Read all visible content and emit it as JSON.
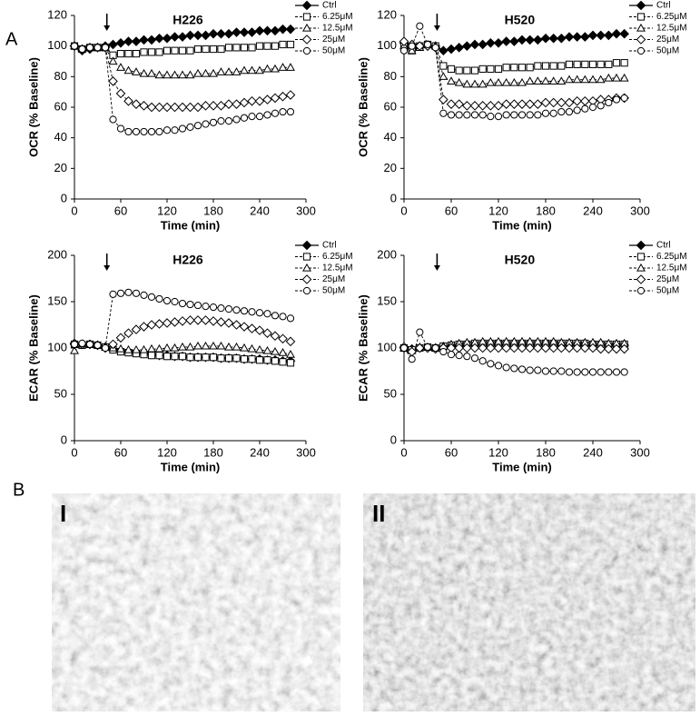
{
  "panel_labels": [
    "A",
    "B"
  ],
  "images": [
    {
      "label": "I"
    },
    {
      "label": "II"
    }
  ],
  "chart_data": [
    {
      "type": "line",
      "title": "H226",
      "x_label": "Time (min)",
      "y_label": "OCR (% Baseline)",
      "legend": "upper right",
      "xlim": [
        0,
        300
      ],
      "xticks": [
        0,
        60,
        120,
        180,
        240,
        300
      ],
      "ylim": [
        0,
        120
      ],
      "yticks": [
        0,
        20,
        40,
        60,
        80,
        100,
        120
      ],
      "x": [
        0,
        10,
        20,
        30,
        40,
        50,
        60,
        70,
        80,
        90,
        100,
        110,
        120,
        130,
        140,
        150,
        160,
        170,
        180,
        190,
        200,
        210,
        220,
        230,
        240,
        250,
        260,
        270,
        280
      ],
      "series": [
        {
          "name": "Ctrl",
          "color": "#000000",
          "marker": "diamond",
          "filled": true,
          "dashed": false,
          "values": [
            100,
            97,
            98,
            99,
            100,
            101,
            102,
            103,
            103,
            104,
            104,
            105,
            105,
            106,
            106,
            107,
            107,
            107,
            108,
            108,
            108,
            109,
            109,
            109,
            110,
            110,
            110,
            111,
            111
          ]
        },
        {
          "name": "6.25μM",
          "color": "#000000",
          "marker": "square",
          "filled": false,
          "dashed": true,
          "values": [
            100,
            98,
            99,
            99,
            99,
            94,
            95,
            95,
            95,
            96,
            96,
            96,
            97,
            97,
            97,
            97,
            98,
            98,
            98,
            98,
            99,
            99,
            99,
            99,
            100,
            100,
            100,
            101,
            101
          ]
        },
        {
          "name": "12.5μM",
          "color": "#000000",
          "marker": "triangle",
          "filled": false,
          "dashed": true,
          "values": [
            100,
            98,
            99,
            99,
            99,
            90,
            86,
            84,
            83,
            82,
            82,
            81,
            81,
            81,
            81,
            81,
            82,
            82,
            82,
            83,
            83,
            83,
            84,
            84,
            84,
            85,
            85,
            86,
            86
          ]
        },
        {
          "name": "25μM",
          "color": "#000000",
          "marker": "diamond",
          "filled": false,
          "dashed": true,
          "values": [
            100,
            98,
            99,
            99,
            99,
            77,
            69,
            64,
            62,
            61,
            60,
            60,
            60,
            60,
            60,
            60,
            60,
            61,
            61,
            61,
            62,
            62,
            63,
            64,
            64,
            65,
            66,
            67,
            68
          ]
        },
        {
          "name": "50μM",
          "color": "#000000",
          "marker": "circle",
          "filled": false,
          "dashed": true,
          "values": [
            100,
            98,
            99,
            99,
            99,
            52,
            46,
            44,
            44,
            44,
            44,
            44,
            45,
            45,
            46,
            47,
            48,
            49,
            50,
            51,
            51,
            52,
            53,
            54,
            54,
            55,
            56,
            57,
            57
          ]
        }
      ]
    },
    {
      "type": "line",
      "title": "H520",
      "x_label": "Time (min)",
      "y_label": "OCR (% Baseline)",
      "legend": "upper right",
      "xlim": [
        0,
        300
      ],
      "xticks": [
        0,
        60,
        120,
        180,
        240,
        300
      ],
      "ylim": [
        0,
        120
      ],
      "yticks": [
        0,
        20,
        40,
        60,
        80,
        100,
        120
      ],
      "x": [
        0,
        10,
        20,
        30,
        40,
        50,
        60,
        70,
        80,
        90,
        100,
        110,
        120,
        130,
        140,
        150,
        160,
        170,
        180,
        190,
        200,
        210,
        220,
        230,
        240,
        250,
        260,
        270,
        280
      ],
      "series": [
        {
          "name": "Ctrl",
          "color": "#000000",
          "marker": "diamond",
          "filled": true,
          "dashed": false,
          "values": [
            102,
            98,
            100,
            100,
            100,
            97,
            98,
            99,
            100,
            101,
            101,
            102,
            102,
            103,
            103,
            104,
            104,
            104,
            105,
            105,
            105,
            106,
            106,
            106,
            107,
            107,
            107,
            108,
            108
          ]
        },
        {
          "name": "6.25μM",
          "color": "#000000",
          "marker": "square",
          "filled": false,
          "dashed": true,
          "values": [
            101,
            97,
            100,
            101,
            100,
            87,
            85,
            84,
            84,
            84,
            85,
            85,
            85,
            86,
            86,
            86,
            86,
            87,
            87,
            87,
            87,
            88,
            88,
            88,
            88,
            88,
            88,
            89,
            89
          ]
        },
        {
          "name": "12.5μM",
          "color": "#000000",
          "marker": "triangle",
          "filled": false,
          "dashed": true,
          "values": [
            100,
            97,
            99,
            101,
            100,
            80,
            77,
            76,
            75,
            75,
            75,
            76,
            76,
            76,
            76,
            76,
            77,
            77,
            77,
            77,
            77,
            78,
            78,
            78,
            78,
            78,
            79,
            79,
            79
          ]
        },
        {
          "name": "25μM",
          "color": "#000000",
          "marker": "diamond",
          "filled": false,
          "dashed": true,
          "values": [
            103,
            101,
            100,
            100,
            99,
            65,
            62,
            62,
            61,
            61,
            61,
            61,
            61,
            62,
            62,
            62,
            62,
            62,
            63,
            63,
            63,
            63,
            64,
            64,
            64,
            65,
            65,
            66,
            66
          ]
        },
        {
          "name": "50μM",
          "color": "#000000",
          "marker": "circle",
          "filled": false,
          "dashed": true,
          "values": [
            97,
            100,
            113,
            101,
            99,
            56,
            55,
            55,
            55,
            55,
            55,
            54,
            54,
            55,
            55,
            55,
            55,
            55,
            56,
            56,
            57,
            57,
            58,
            59,
            60,
            61,
            63,
            65,
            66
          ]
        }
      ]
    },
    {
      "type": "line",
      "title": "H226",
      "x_label": "Time (min)",
      "y_label": "ECAR (% Baseline)",
      "legend": "upper right",
      "xlim": [
        0,
        300
      ],
      "xticks": [
        0,
        60,
        120,
        180,
        240,
        300
      ],
      "ylim": [
        0,
        200
      ],
      "yticks": [
        0,
        50,
        100,
        150,
        200
      ],
      "x": [
        0,
        10,
        20,
        30,
        40,
        50,
        60,
        70,
        80,
        90,
        100,
        110,
        120,
        130,
        140,
        150,
        160,
        170,
        180,
        190,
        200,
        210,
        220,
        230,
        240,
        250,
        260,
        270,
        280
      ],
      "series": [
        {
          "name": "Ctrl",
          "color": "#000000",
          "marker": "diamond",
          "filled": true,
          "dashed": false,
          "values": [
            105,
            104,
            104,
            103,
            101,
            99,
            97,
            96,
            95,
            94,
            93,
            92,
            92,
            91,
            91,
            90,
            90,
            90,
            90,
            89,
            89,
            89,
            88,
            88,
            88,
            87,
            87,
            86,
            86
          ]
        },
        {
          "name": "6.25μM",
          "color": "#000000",
          "marker": "square",
          "filled": false,
          "dashed": true,
          "values": [
            104,
            103,
            104,
            103,
            101,
            98,
            96,
            95,
            94,
            93,
            92,
            92,
            91,
            91,
            91,
            90,
            90,
            90,
            90,
            89,
            89,
            89,
            88,
            88,
            87,
            87,
            86,
            85,
            84
          ]
        },
        {
          "name": "12.5μM",
          "color": "#000000",
          "marker": "triangle",
          "filled": false,
          "dashed": true,
          "values": [
            97,
            104,
            104,
            103,
            101,
            100,
            99,
            98,
            98,
            98,
            99,
            99,
            100,
            100,
            101,
            101,
            102,
            102,
            102,
            102,
            101,
            101,
            100,
            99,
            98,
            97,
            96,
            95,
            93
          ]
        },
        {
          "name": "25μM",
          "color": "#000000",
          "marker": "diamond",
          "filled": false,
          "dashed": true,
          "values": [
            104,
            104,
            104,
            103,
            100,
            104,
            111,
            116,
            120,
            123,
            125,
            126,
            127,
            128,
            129,
            130,
            130,
            130,
            129,
            128,
            127,
            125,
            123,
            121,
            119,
            116,
            113,
            110,
            107
          ]
        },
        {
          "name": "50μM",
          "color": "#000000",
          "marker": "circle",
          "filled": false,
          "dashed": true,
          "values": [
            104,
            105,
            104,
            103,
            100,
            158,
            159,
            160,
            159,
            157,
            155,
            153,
            151,
            150,
            148,
            147,
            146,
            145,
            144,
            143,
            142,
            141,
            140,
            139,
            138,
            137,
            135,
            134,
            132
          ]
        }
      ]
    },
    {
      "type": "line",
      "title": "H520",
      "x_label": "Time (min)",
      "y_label": "ECAR (% Baseline)",
      "legend": "upper right",
      "xlim": [
        0,
        300
      ],
      "xticks": [
        0,
        60,
        120,
        180,
        240,
        300
      ],
      "ylim": [
        0,
        200
      ],
      "yticks": [
        0,
        50,
        100,
        150,
        200
      ],
      "x": [
        0,
        10,
        20,
        30,
        40,
        50,
        60,
        70,
        80,
        90,
        100,
        110,
        120,
        130,
        140,
        150,
        160,
        170,
        180,
        190,
        200,
        210,
        220,
        230,
        240,
        250,
        260,
        270,
        280
      ],
      "series": [
        {
          "name": "Ctrl",
          "color": "#000000",
          "marker": "diamond",
          "filled": true,
          "dashed": false,
          "values": [
            100,
            99,
            100,
            100,
            100,
            101,
            102,
            102,
            103,
            103,
            103,
            103,
            103,
            103,
            103,
            103,
            103,
            103,
            103,
            103,
            103,
            103,
            103,
            103,
            103,
            103,
            103,
            103,
            103
          ]
        },
        {
          "name": "6.25μM",
          "color": "#000000",
          "marker": "square",
          "filled": false,
          "dashed": true,
          "values": [
            100,
            98,
            100,
            101,
            100,
            102,
            103,
            104,
            104,
            105,
            105,
            105,
            105,
            105,
            105,
            105,
            105,
            105,
            105,
            105,
            105,
            105,
            105,
            105,
            104,
            104,
            104,
            104,
            104
          ]
        },
        {
          "name": "12.5μM",
          "color": "#000000",
          "marker": "triangle",
          "filled": false,
          "dashed": true,
          "values": [
            100,
            97,
            101,
            101,
            100,
            102,
            104,
            105,
            106,
            106,
            107,
            107,
            107,
            107,
            107,
            107,
            107,
            107,
            107,
            107,
            106,
            106,
            106,
            106,
            106,
            106,
            105,
            105,
            105
          ]
        },
        {
          "name": "25μM",
          "color": "#000000",
          "marker": "diamond",
          "filled": false,
          "dashed": true,
          "values": [
            101,
            96,
            100,
            100,
            99,
            100,
            100,
            100,
            100,
            100,
            100,
            100,
            100,
            100,
            100,
            100,
            100,
            100,
            100,
            100,
            100,
            100,
            100,
            100,
            100,
            99,
            99,
            99,
            99
          ]
        },
        {
          "name": "50μM",
          "color": "#000000",
          "marker": "circle",
          "filled": false,
          "dashed": true,
          "values": [
            100,
            88,
            117,
            101,
            100,
            96,
            93,
            92,
            91,
            89,
            86,
            83,
            81,
            79,
            78,
            77,
            76,
            76,
            75,
            75,
            75,
            74,
            74,
            74,
            74,
            74,
            74,
            74,
            74
          ]
        }
      ]
    }
  ]
}
